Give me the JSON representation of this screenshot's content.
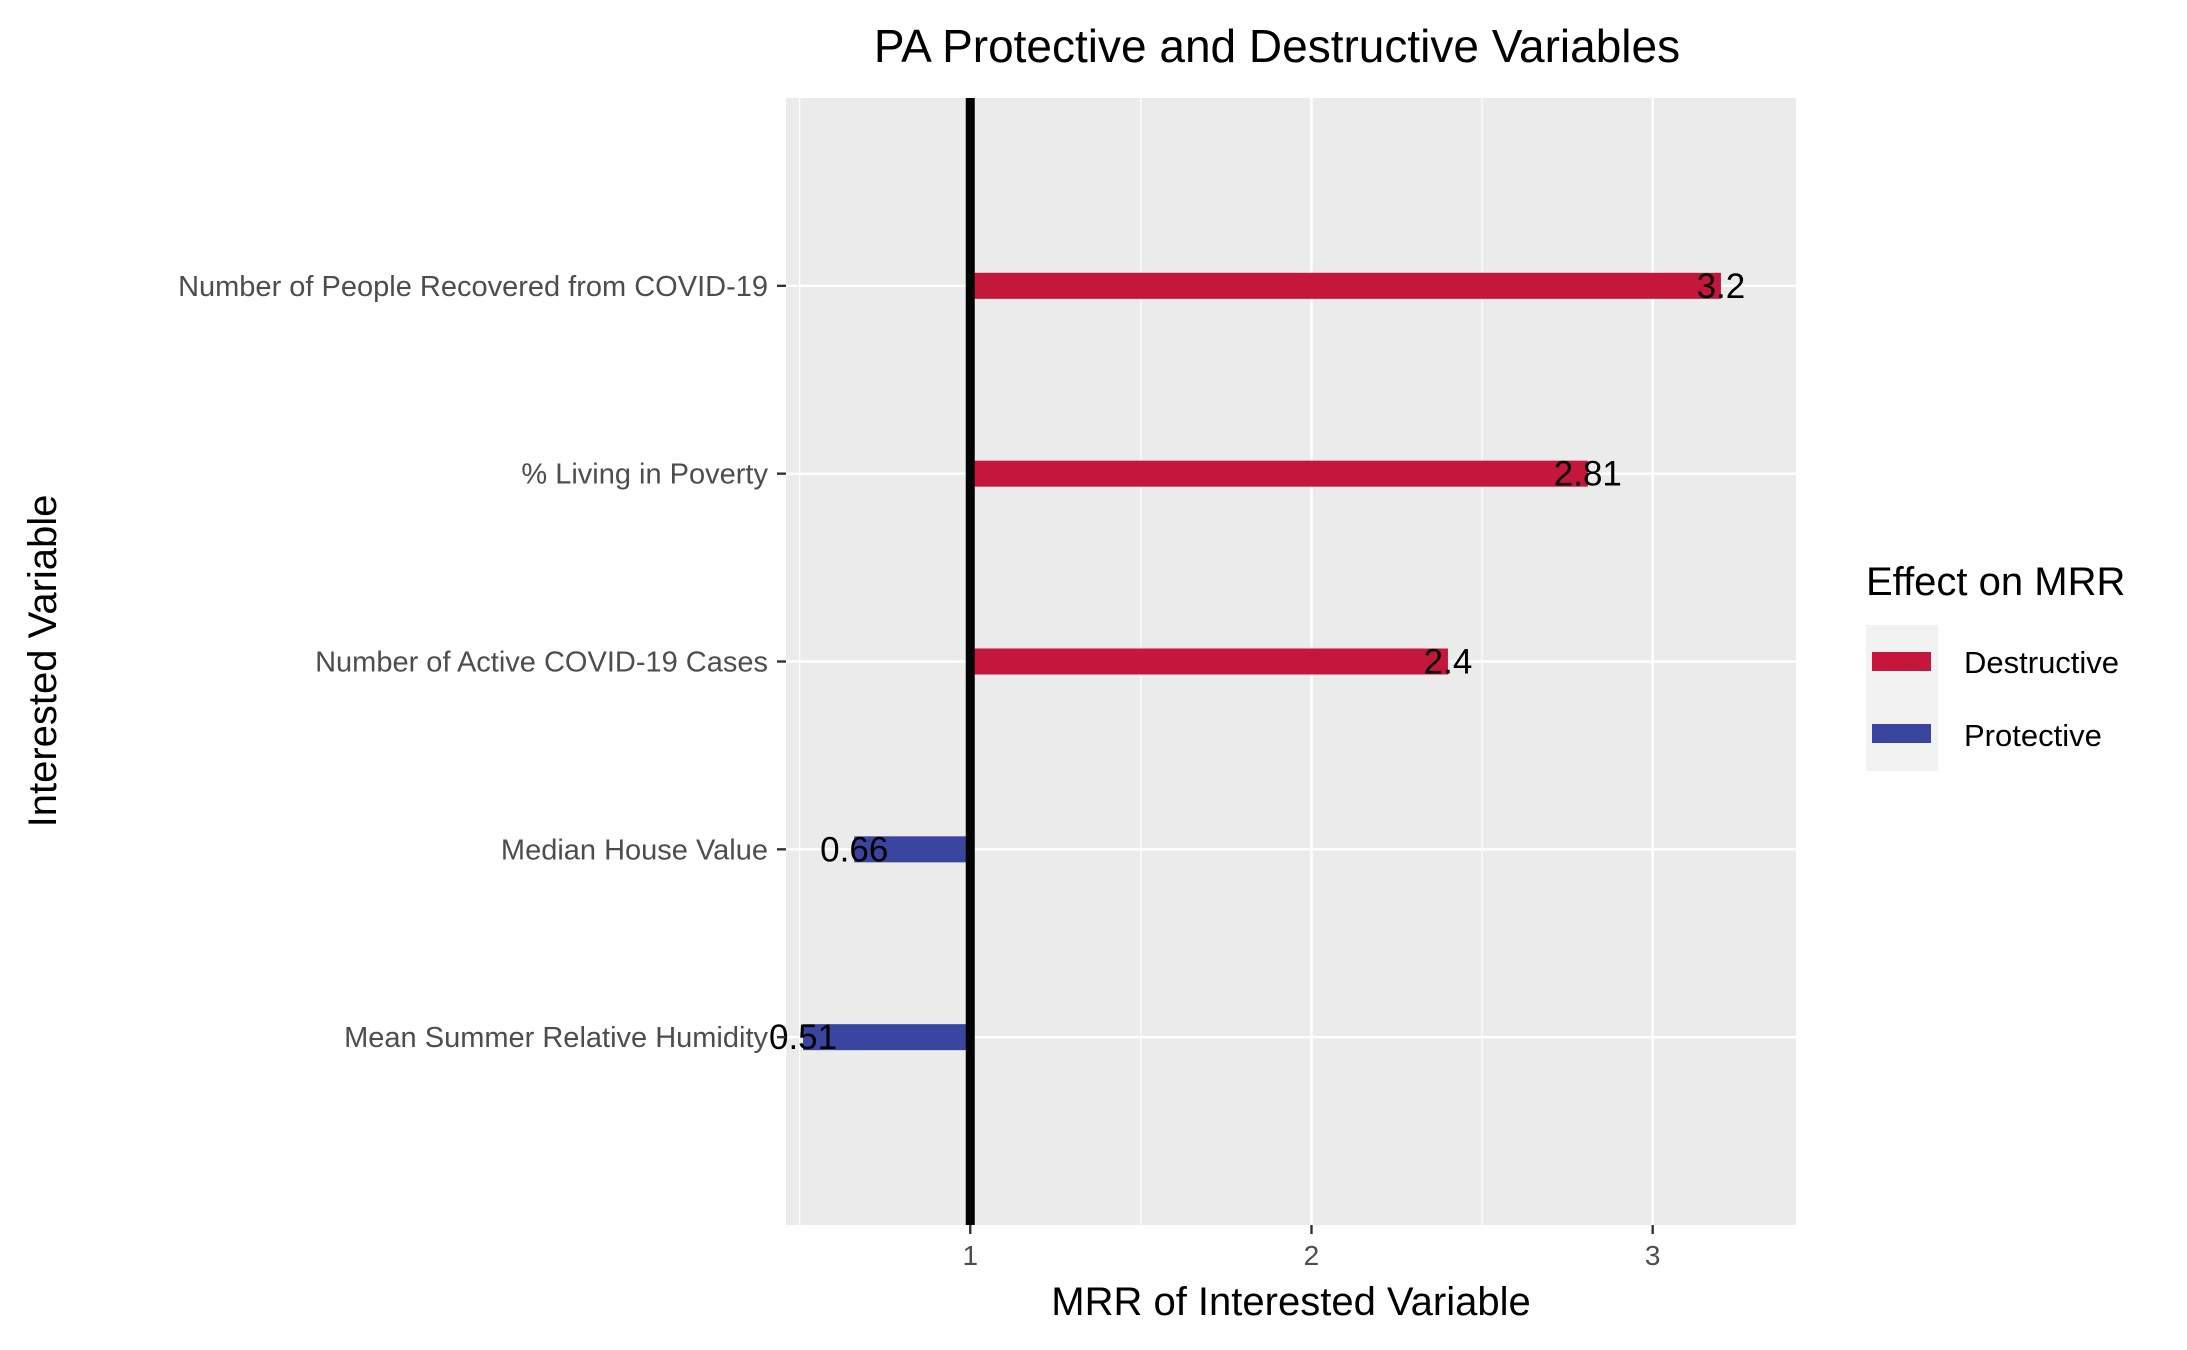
{
  "chart_data": {
    "type": "bar",
    "orientation": "horizontal",
    "title": "PA Protective and Destructive Variables",
    "xlabel": "MRR of Interested Variable",
    "ylabel": "Interested Variable",
    "categories": [
      "Number of People Recovered from COVID-19",
      "% Living in Poverty",
      "Number of Active COVID-19 Cases",
      "Median House Value",
      "Mean Summer Relative Humidity"
    ],
    "values": [
      3.2,
      2.81,
      2.4,
      0.66,
      0.51
    ],
    "data_labels": [
      "3.2",
      "2.81",
      "2.4",
      "0.66",
      "0.51"
    ],
    "effects": [
      "Destructive",
      "Destructive",
      "Destructive",
      "Protective",
      "Protective"
    ],
    "baseline": 1,
    "xlim": [
      0.46,
      3.42
    ],
    "x_ticks": [
      1,
      2,
      3
    ],
    "x_tick_labels": [
      "1",
      "2",
      "3"
    ],
    "grid": true,
    "legend": {
      "title": "Effect on MRR",
      "position": "right",
      "entries": [
        {
          "label": "Destructive",
          "color": "#c4173b"
        },
        {
          "label": "Protective",
          "color": "#3a45a0"
        }
      ]
    },
    "colors": {
      "Destructive": "#c4173b",
      "Protective": "#3a45a0",
      "panel_background": "#ebebeb",
      "grid": "#ffffff",
      "reference_line": "#000000"
    }
  }
}
